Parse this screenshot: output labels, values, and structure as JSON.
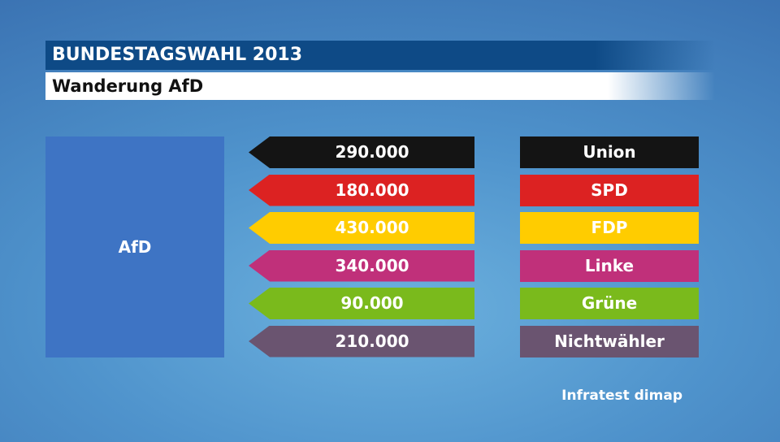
{
  "header": {
    "title": "BUNDESTAGSWAHL 2013",
    "subtitle": "Wanderung AfD"
  },
  "target": {
    "label": "AfD",
    "color": "#3e74c4"
  },
  "chart_data": {
    "type": "table",
    "title": "BUNDESTAGSWAHL 2013",
    "subtitle": "Wanderung AfD",
    "target": "AfD",
    "categories": [
      "Union",
      "SPD",
      "FDP",
      "Linke",
      "Grüne",
      "Nichtwähler"
    ],
    "values": [
      290000,
      180000,
      430000,
      340000,
      90000,
      210000
    ],
    "value_labels": [
      "290.000",
      "180.000",
      "430.000",
      "340.000",
      "90.000",
      "210.000"
    ],
    "colors": [
      "#141414",
      "#dc2222",
      "#ffcc00",
      "#c0307a",
      "#7aba1c",
      "#6a5470"
    ],
    "rows": [
      {
        "party": "Union",
        "value": 290000,
        "label": "290.000",
        "color": "#141414"
      },
      {
        "party": "SPD",
        "value": 180000,
        "label": "180.000",
        "color": "#dc2222"
      },
      {
        "party": "FDP",
        "value": 430000,
        "label": "430.000",
        "color": "#ffcc00"
      },
      {
        "party": "Linke",
        "value": 340000,
        "label": "340.000",
        "color": "#c0307a"
      },
      {
        "party": "Grüne",
        "value": 90000,
        "label": "90.000",
        "color": "#7aba1c"
      },
      {
        "party": "Nichtwähler",
        "value": 210000,
        "label": "210.000",
        "color": "#6a5470"
      }
    ]
  },
  "source": "Infratest dimap"
}
